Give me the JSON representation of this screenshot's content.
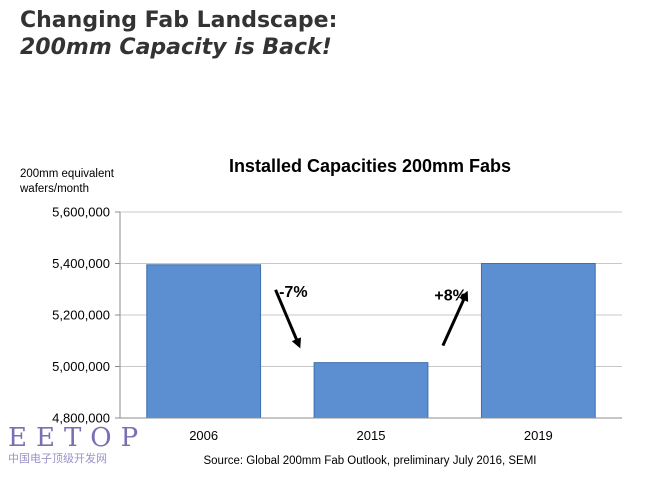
{
  "slide": {
    "title_line1": "Changing Fab Landscape:",
    "title_line2": "200mm Capacity is Back!"
  },
  "watermark": {
    "name": "EETOP",
    "subtitle": "中国电子顶级开发网"
  },
  "chart_data": {
    "type": "bar",
    "title": "Installed Capacities 200mm Fabs",
    "ylabel": "200mm equivalent\nwafers/month",
    "ylabel_lines": [
      "200mm equivalent",
      "wafers/month"
    ],
    "xlabel": "",
    "categories": [
      "2006",
      "2015",
      "2019"
    ],
    "values": [
      5395000,
      5015000,
      5400000
    ],
    "ylim": [
      4800000,
      5600000
    ],
    "yticks": [
      4800000,
      5000000,
      5200000,
      5400000,
      5600000
    ],
    "ytick_labels": [
      "4,800,000",
      "5,000,000",
      "5,200,000",
      "5,400,000",
      "5,600,000"
    ],
    "grid": true,
    "bar_color": "#5b8fd1",
    "bar_edge_color": "#3e6fae",
    "annotations": [
      {
        "text": "-7%",
        "from_category": "2006",
        "to_category": "2015"
      },
      {
        "text": "+8%",
        "from_category": "2015",
        "to_category": "2019"
      }
    ],
    "source": "Source: Global 200mm Fab Outlook, preliminary July 2016, SEMI"
  }
}
